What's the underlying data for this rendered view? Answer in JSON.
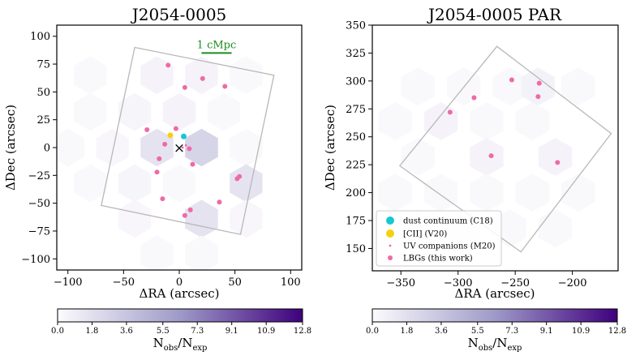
{
  "figure_title": "Two-panel hexbin overdensity map with galaxy positions",
  "colors": {
    "hex_base": "#d4d4e8",
    "frame": "#b8b8b8",
    "dust": "#17c7d4",
    "cii": "#f5d10c",
    "uv": "#ee6aa7",
    "lbg": "#ee6aa7",
    "scalebar": "#1e8c1e",
    "cbar_start": "#fcfbfd",
    "cbar_mid": "#9e9ac8",
    "cbar_end": "#3f007d"
  },
  "chart_data": [
    {
      "type": "scatter",
      "title": "J2054-0005",
      "xlabel": "ΔRA (arcsec)",
      "ylabel": "ΔDec (arcsec)",
      "xlim": [
        -110,
        110
      ],
      "ylim": [
        -110,
        110
      ],
      "xticks": [
        -100,
        -50,
        0,
        50,
        100
      ],
      "xtick_labels": [
        "−100",
        "−50",
        "0",
        "50",
        "100"
      ],
      "yticks": [
        -100,
        -75,
        -50,
        -25,
        0,
        25,
        50,
        75,
        100
      ],
      "ytick_labels": [
        "−100",
        "−75",
        "−50",
        "−25",
        "0",
        "25",
        "50",
        "75",
        "100"
      ],
      "hex_radius": 17,
      "hexbins": [
        {
          "x": -80,
          "y": 65,
          "v": 0.2
        },
        {
          "x": -20,
          "y": 65,
          "v": 0.5
        },
        {
          "x": 20,
          "y": 65,
          "v": 0.5
        },
        {
          "x": 60,
          "y": 65,
          "v": 0.2
        },
        {
          "x": -80,
          "y": 32,
          "v": 0.2
        },
        {
          "x": -40,
          "y": 32,
          "v": 0.4
        },
        {
          "x": 0,
          "y": 32,
          "v": 0.5
        },
        {
          "x": 40,
          "y": 32,
          "v": 0.2
        },
        {
          "x": -100,
          "y": 0,
          "v": 0.2
        },
        {
          "x": -60,
          "y": 0,
          "v": 0.3
        },
        {
          "x": -20,
          "y": 0,
          "v": 1.6
        },
        {
          "x": 20,
          "y": 0,
          "v": 2.6
        },
        {
          "x": 60,
          "y": 0,
          "v": 0.2
        },
        {
          "x": -80,
          "y": -32,
          "v": 0.2
        },
        {
          "x": -40,
          "y": -32,
          "v": 0.4
        },
        {
          "x": 0,
          "y": -32,
          "v": 0.2
        },
        {
          "x": 60,
          "y": -32,
          "v": 1.6
        },
        {
          "x": -40,
          "y": -64,
          "v": 0.3
        },
        {
          "x": 20,
          "y": -64,
          "v": 1.6
        },
        {
          "x": 60,
          "y": -64,
          "v": 0.3
        },
        {
          "x": -20,
          "y": -96,
          "v": 0.2
        },
        {
          "x": 20,
          "y": -96,
          "v": 0.2
        }
      ],
      "footprint": [
        [
          -40,
          90
        ],
        [
          85,
          65
        ],
        [
          55,
          -78
        ],
        [
          -70,
          -52
        ]
      ],
      "points": [
        {
          "x": -10,
          "y": 74,
          "kind": "lbg"
        },
        {
          "x": 21,
          "y": 62,
          "kind": "lbg"
        },
        {
          "x": 5,
          "y": 54,
          "kind": "lbg"
        },
        {
          "x": 41,
          "y": 55,
          "kind": "lbg"
        },
        {
          "x": -29,
          "y": 16,
          "kind": "lbg"
        },
        {
          "x": -3,
          "y": 17,
          "kind": "lbg"
        },
        {
          "x": -13,
          "y": 3,
          "kind": "lbg"
        },
        {
          "x": 9,
          "y": -1,
          "kind": "lbg"
        },
        {
          "x": -18,
          "y": -10,
          "kind": "lbg"
        },
        {
          "x": 12,
          "y": -15,
          "kind": "lbg"
        },
        {
          "x": -20,
          "y": -22,
          "kind": "lbg"
        },
        {
          "x": 52,
          "y": -28,
          "kind": "lbg"
        },
        {
          "x": 54,
          "y": -26,
          "kind": "lbg"
        },
        {
          "x": -15,
          "y": -46,
          "kind": "lbg"
        },
        {
          "x": 36,
          "y": -49,
          "kind": "lbg"
        },
        {
          "x": 10,
          "y": -56,
          "kind": "lbg"
        },
        {
          "x": 5,
          "y": -61,
          "kind": "lbg"
        },
        {
          "x": -8,
          "y": 11,
          "kind": "cii"
        },
        {
          "x": 4,
          "y": 10,
          "kind": "dust"
        },
        {
          "x": 3,
          "y": 0,
          "kind": "uv"
        },
        {
          "x": 6,
          "y": 2,
          "kind": "uv"
        }
      ],
      "target_marker": {
        "x": 0,
        "y": 0,
        "symbol": "×"
      },
      "scale_bar": {
        "x1": 20,
        "x2": 47,
        "y": 85,
        "label": "1 cMpc"
      }
    },
    {
      "type": "scatter",
      "title": "J2054-0005 PAR",
      "xlabel": "ΔRA (arcsec)",
      "ylabel": "ΔDec (arcsec)",
      "xlim": [
        -375,
        -160
      ],
      "ylim": [
        130,
        350
      ],
      "xticks": [
        -350,
        -300,
        -250,
        -200
      ],
      "xtick_labels": [
        "−350",
        "−300",
        "−250",
        "−200"
      ],
      "yticks": [
        150,
        175,
        200,
        225,
        250,
        275,
        300,
        325,
        350
      ],
      "ytick_labels": [
        "150",
        "175",
        "200",
        "225",
        "250",
        "275",
        "300",
        "325",
        "350"
      ],
      "hex_radius": 17,
      "hexbins": [
        {
          "x": -335,
          "y": 295,
          "v": 0.2
        },
        {
          "x": -295,
          "y": 295,
          "v": 0.2
        },
        {
          "x": -255,
          "y": 295,
          "v": 0.2
        },
        {
          "x": -230,
          "y": 295,
          "v": 0.6
        },
        {
          "x": -195,
          "y": 295,
          "v": 0.2
        },
        {
          "x": -355,
          "y": 264,
          "v": 0.2
        },
        {
          "x": -315,
          "y": 264,
          "v": 0.5
        },
        {
          "x": -275,
          "y": 264,
          "v": 0.2
        },
        {
          "x": -235,
          "y": 264,
          "v": 0.2
        },
        {
          "x": -335,
          "y": 232,
          "v": 0.2
        },
        {
          "x": -275,
          "y": 232,
          "v": 0.5
        },
        {
          "x": -215,
          "y": 232,
          "v": 0.5
        },
        {
          "x": -355,
          "y": 200,
          "v": 0.2
        },
        {
          "x": -315,
          "y": 200,
          "v": 0.2
        },
        {
          "x": -275,
          "y": 200,
          "v": 0.2
        },
        {
          "x": -235,
          "y": 200,
          "v": 0.2
        },
        {
          "x": -195,
          "y": 200,
          "v": 0.2
        },
        {
          "x": -335,
          "y": 168,
          "v": 0.2
        },
        {
          "x": -295,
          "y": 168,
          "v": 0.2
        },
        {
          "x": -255,
          "y": 168,
          "v": 0.2
        },
        {
          "x": -215,
          "y": 168,
          "v": 0.2
        }
      ],
      "footprint": [
        [
          -266,
          331
        ],
        [
          -166,
          253
        ],
        [
          -245,
          147
        ],
        [
          -351,
          224
        ]
      ],
      "points": [
        {
          "x": -253,
          "y": 301,
          "kind": "lbg"
        },
        {
          "x": -229,
          "y": 298,
          "kind": "lbg"
        },
        {
          "x": -230,
          "y": 286,
          "kind": "lbg"
        },
        {
          "x": -286,
          "y": 285,
          "kind": "lbg"
        },
        {
          "x": -307,
          "y": 272,
          "kind": "lbg"
        },
        {
          "x": -271,
          "y": 233,
          "kind": "lbg"
        },
        {
          "x": -213,
          "y": 227,
          "kind": "lbg"
        }
      ],
      "legend": {
        "position": "bottom-left",
        "entries": [
          {
            "label": "dust continuum (C18)",
            "kind": "dust"
          },
          {
            "label": "[CII] (V20)",
            "kind": "cii"
          },
          {
            "label": "UV companions (M20)",
            "kind": "uv"
          },
          {
            "label": "LBGs (this work)",
            "kind": "lbg"
          }
        ]
      }
    }
  ],
  "colorbar": {
    "label_main": "N",
    "label_sub1": "obs",
    "label_sep": "/N",
    "label_sub2": "exp",
    "vmin": 0.0,
    "vmax": 12.8,
    "ticks": [
      0.0,
      1.8,
      3.6,
      5.5,
      7.3,
      9.1,
      10.9,
      12.8
    ],
    "tick_labels": [
      "0.0",
      "1.8",
      "3.6",
      "5.5",
      "7.3",
      "9.1",
      "10.9",
      "12.8"
    ]
  }
}
